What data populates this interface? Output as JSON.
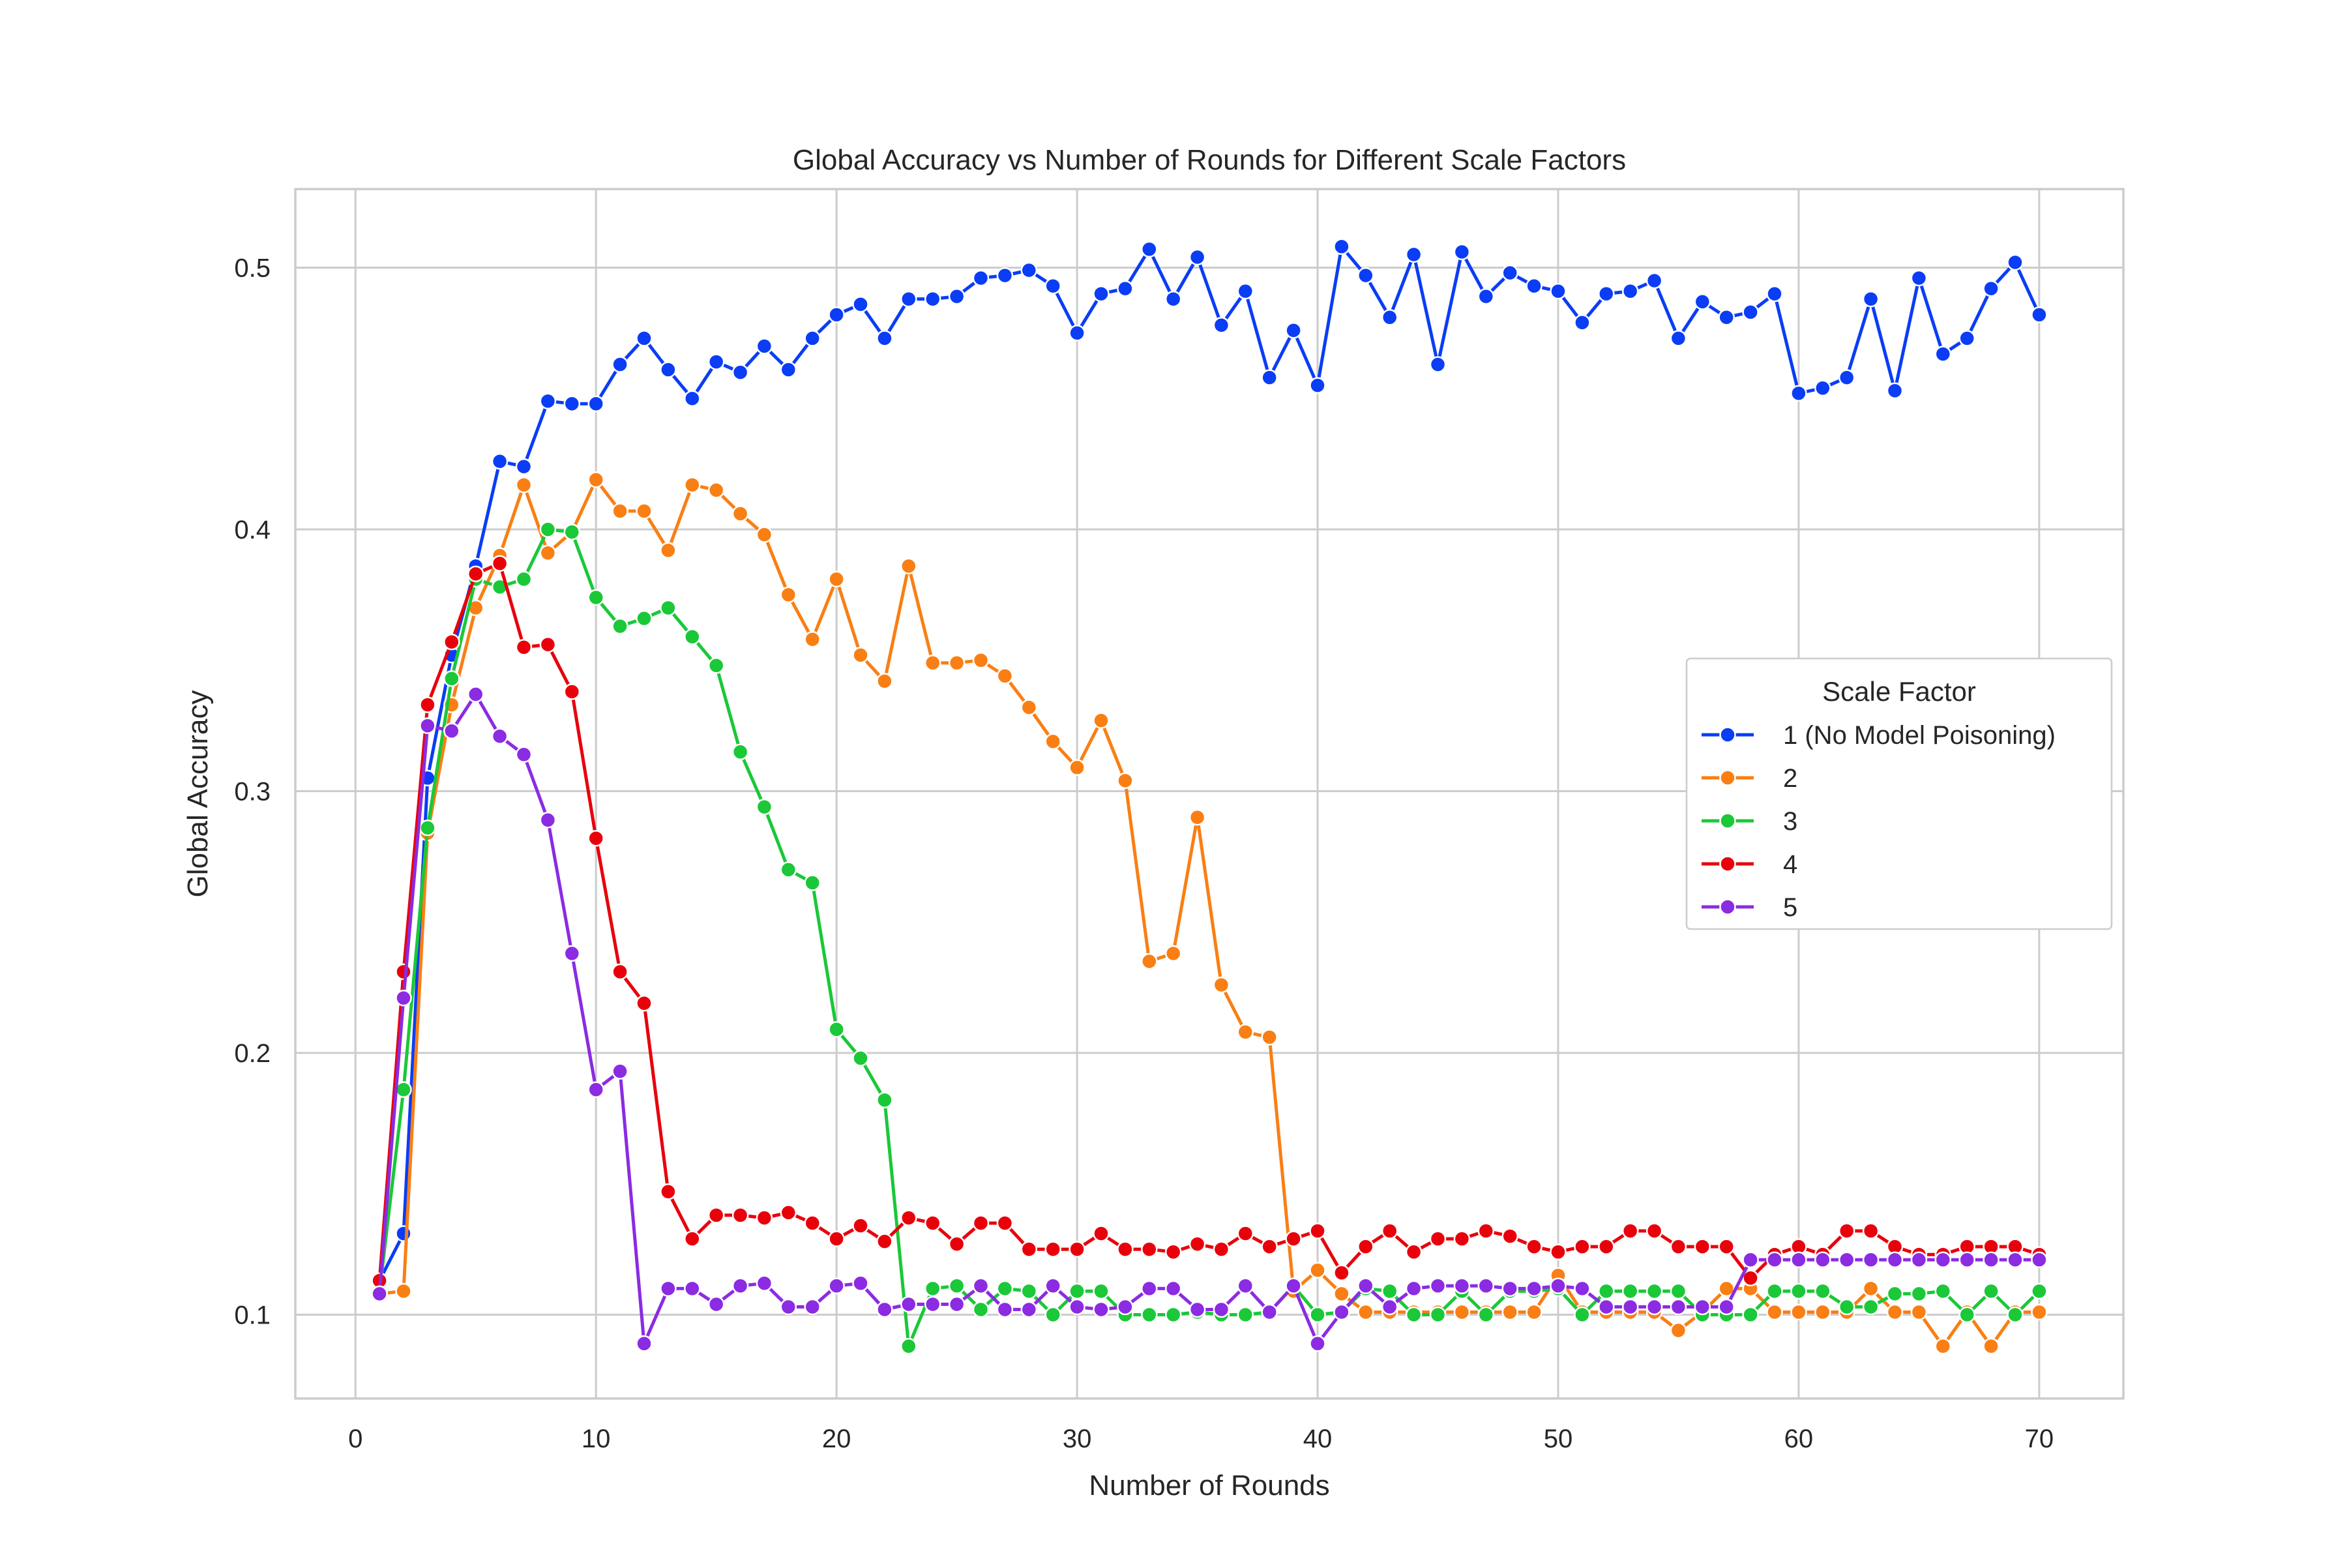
{
  "chart_data": {
    "type": "line",
    "title": "Global Accuracy vs Number of Rounds for Different Scale Factors",
    "xlabel": "Number of Rounds",
    "ylabel": "Global Accuracy",
    "xlim": [
      -2.5,
      73.5
    ],
    "ylim": [
      0.068,
      0.53
    ],
    "xticks": [
      0,
      10,
      20,
      30,
      40,
      50,
      60,
      70
    ],
    "yticks": [
      0.1,
      0.2,
      0.3,
      0.4,
      0.5
    ],
    "xtick_labels": [
      "0",
      "10",
      "20",
      "30",
      "40",
      "50",
      "60",
      "70"
    ],
    "ytick_labels": [
      "0.1",
      "0.2",
      "0.3",
      "0.4",
      "0.5"
    ],
    "grid": true,
    "legend": {
      "title": "Scale Factor",
      "placement": "center-right"
    },
    "x": [
      1,
      2,
      3,
      4,
      5,
      6,
      7,
      8,
      9,
      10,
      11,
      12,
      13,
      14,
      15,
      16,
      17,
      18,
      19,
      20,
      21,
      22,
      23,
      24,
      25,
      26,
      27,
      28,
      29,
      30,
      31,
      32,
      33,
      34,
      35,
      36,
      37,
      38,
      39,
      40,
      41,
      42,
      43,
      44,
      45,
      46,
      47,
      48,
      49,
      50,
      51,
      52,
      53,
      54,
      55,
      56,
      57,
      58,
      59,
      60,
      61,
      62,
      63,
      64,
      65,
      66,
      67,
      68,
      69,
      70
    ],
    "series": [
      {
        "name": "1 (No Model Poisoning)",
        "color": "#0a3df5",
        "values": [
          0.113,
          0.131,
          0.305,
          0.352,
          0.386,
          0.426,
          0.424,
          0.449,
          0.448,
          0.448,
          0.463,
          0.473,
          0.461,
          0.45,
          0.464,
          0.46,
          0.47,
          0.461,
          0.473,
          0.482,
          0.486,
          0.473,
          0.488,
          0.488,
          0.489,
          0.496,
          0.497,
          0.499,
          0.493,
          0.475,
          0.49,
          0.492,
          0.507,
          0.488,
          0.504,
          0.478,
          0.491,
          0.458,
          0.476,
          0.455,
          0.508,
          0.497,
          0.481,
          0.505,
          0.463,
          0.506,
          0.489,
          0.498,
          0.493,
          0.491,
          0.479,
          0.49,
          0.491,
          0.495,
          0.473,
          0.487,
          0.481,
          0.483,
          0.49,
          0.452,
          0.454,
          0.458,
          0.488,
          0.453,
          0.496,
          0.467,
          0.473,
          0.492,
          0.502,
          0.482
        ]
      },
      {
        "name": "2",
        "color": "#f97f14",
        "values": [
          0.108,
          0.109,
          0.284,
          0.333,
          0.37,
          0.39,
          0.417,
          0.391,
          0.399,
          0.419,
          0.407,
          0.407,
          0.392,
          0.417,
          0.415,
          0.406,
          0.398,
          0.375,
          0.358,
          0.381,
          0.352,
          0.342,
          0.386,
          0.349,
          0.349,
          0.35,
          0.344,
          0.332,
          0.319,
          0.309,
          0.327,
          0.304,
          0.235,
          0.238,
          0.29,
          0.226,
          0.208,
          0.206,
          0.109,
          0.117,
          0.108,
          0.101,
          0.101,
          0.101,
          0.101,
          0.101,
          0.101,
          0.101,
          0.101,
          0.115,
          0.101,
          0.101,
          0.101,
          0.101,
          0.094,
          0.101,
          0.11,
          0.11,
          0.101,
          0.101,
          0.101,
          0.101,
          0.11,
          0.101,
          0.101,
          0.088,
          0.101,
          0.088,
          0.101,
          0.101
        ]
      },
      {
        "name": "3",
        "color": "#1ac838",
        "values": [
          0.109,
          0.186,
          0.286,
          0.343,
          0.381,
          0.378,
          0.381,
          0.4,
          0.399,
          0.374,
          0.363,
          0.366,
          0.37,
          0.359,
          0.348,
          0.315,
          0.294,
          0.27,
          0.265,
          0.209,
          0.198,
          0.182,
          0.088,
          0.11,
          0.111,
          0.102,
          0.11,
          0.109,
          0.1,
          0.109,
          0.109,
          0.1,
          0.1,
          0.1,
          0.101,
          0.1,
          0.1,
          0.101,
          0.111,
          0.1,
          0.101,
          0.11,
          0.109,
          0.1,
          0.1,
          0.109,
          0.1,
          0.109,
          0.109,
          0.11,
          0.1,
          0.109,
          0.109,
          0.109,
          0.109,
          0.1,
          0.1,
          0.1,
          0.109,
          0.109,
          0.109,
          0.103,
          0.103,
          0.108,
          0.108,
          0.109,
          0.1,
          0.109,
          0.1,
          0.109
        ]
      },
      {
        "name": "4",
        "color": "#e8000b",
        "values": [
          0.113,
          0.231,
          0.333,
          0.357,
          0.383,
          0.387,
          0.355,
          0.356,
          0.338,
          0.282,
          0.231,
          0.219,
          0.147,
          0.129,
          0.138,
          0.138,
          0.137,
          0.139,
          0.135,
          0.129,
          0.134,
          0.128,
          0.137,
          0.135,
          0.127,
          0.135,
          0.135,
          0.125,
          0.125,
          0.125,
          0.131,
          0.125,
          0.125,
          0.124,
          0.127,
          0.125,
          0.131,
          0.126,
          0.129,
          0.132,
          0.116,
          0.126,
          0.132,
          0.124,
          0.129,
          0.129,
          0.132,
          0.13,
          0.126,
          0.124,
          0.126,
          0.126,
          0.132,
          0.132,
          0.126,
          0.126,
          0.126,
          0.114,
          0.123,
          0.126,
          0.123,
          0.132,
          0.132,
          0.126,
          0.123,
          0.123,
          0.126,
          0.126,
          0.126,
          0.123
        ]
      },
      {
        "name": "5",
        "color": "#8b2be2",
        "values": [
          0.108,
          0.221,
          0.325,
          0.323,
          0.337,
          0.321,
          0.314,
          0.289,
          0.238,
          0.186,
          0.193,
          0.089,
          0.11,
          0.11,
          0.104,
          0.111,
          0.112,
          0.103,
          0.103,
          0.111,
          0.112,
          0.102,
          0.104,
          0.104,
          0.104,
          0.111,
          0.102,
          0.102,
          0.111,
          0.103,
          0.102,
          0.103,
          0.11,
          0.11,
          0.102,
          0.102,
          0.111,
          0.101,
          0.111,
          0.089,
          0.101,
          0.111,
          0.103,
          0.11,
          0.111,
          0.111,
          0.111,
          0.11,
          0.11,
          0.111,
          0.11,
          0.103,
          0.103,
          0.103,
          0.103,
          0.103,
          0.103,
          0.121,
          0.121,
          0.121,
          0.121,
          0.121,
          0.121,
          0.121,
          0.121,
          0.121,
          0.121,
          0.121,
          0.121,
          0.121
        ]
      }
    ]
  }
}
